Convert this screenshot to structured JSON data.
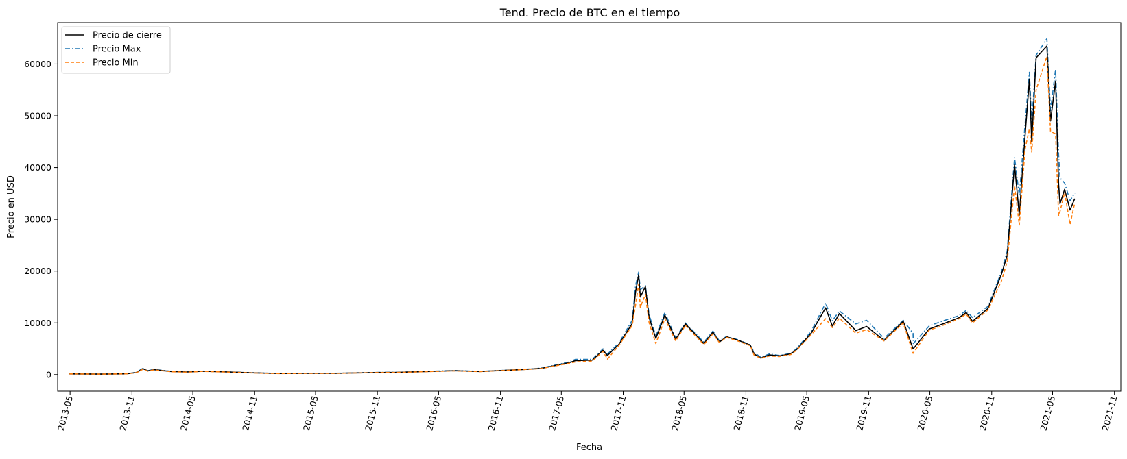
{
  "chart_data": {
    "type": "line",
    "title": "Tend. Precio de BTC en el tiempo",
    "xlabel": "Fecha",
    "ylabel": "Precio en USD",
    "xlim": [
      "2013-03-25",
      "2021-11-20"
    ],
    "ylim": [
      -3200,
      68000
    ],
    "x_ticks": [
      "2013-05",
      "2013-11",
      "2014-05",
      "2014-11",
      "2015-05",
      "2015-11",
      "2016-05",
      "2016-11",
      "2017-05",
      "2017-11",
      "2018-05",
      "2018-11",
      "2019-05",
      "2019-11",
      "2020-05",
      "2020-11",
      "2021-05",
      "2021-11"
    ],
    "y_ticks": [
      0,
      10000,
      20000,
      30000,
      40000,
      50000,
      60000
    ],
    "grid": false,
    "legend_position": "top-left",
    "x": [
      "2013-04-29",
      "2013-08-01",
      "2013-10-15",
      "2013-11-15",
      "2013-12-04",
      "2013-12-18",
      "2014-01-05",
      "2014-02-25",
      "2014-04-15",
      "2014-06-01",
      "2014-08-15",
      "2014-11-01",
      "2015-01-15",
      "2015-04-01",
      "2015-07-01",
      "2015-11-04",
      "2016-01-01",
      "2016-06-17",
      "2016-09-01",
      "2016-12-31",
      "2017-03-01",
      "2017-05-25",
      "2017-06-12",
      "2017-08-01",
      "2017-09-02",
      "2017-09-15",
      "2017-10-20",
      "2017-11-28",
      "2017-12-08",
      "2017-12-17",
      "2017-12-22",
      "2018-01-06",
      "2018-01-17",
      "2018-02-06",
      "2018-03-05",
      "2018-04-06",
      "2018-05-05",
      "2018-06-29",
      "2018-07-26",
      "2018-08-14",
      "2018-09-05",
      "2018-10-10",
      "2018-11-14",
      "2018-11-25",
      "2018-12-15",
      "2019-01-10",
      "2019-02-08",
      "2019-03-15",
      "2019-04-02",
      "2019-05-14",
      "2019-06-26",
      "2019-07-16",
      "2019-08-06",
      "2019-09-24",
      "2019-10-26",
      "2019-12-17",
      "2020-02-12",
      "2020-03-12",
      "2020-03-13",
      "2020-04-29",
      "2020-06-01",
      "2020-07-27",
      "2020-08-17",
      "2020-09-05",
      "2020-10-21",
      "2020-11-30",
      "2020-12-17",
      "2021-01-08",
      "2021-01-22",
      "2021-02-08",
      "2021-02-21",
      "2021-02-28",
      "2021-03-13",
      "2021-04-14",
      "2021-04-25",
      "2021-05-10",
      "2021-05-19",
      "2021-05-23",
      "2021-06-06",
      "2021-06-22",
      "2021-07-06"
    ],
    "series": [
      {
        "name": "Precio de cierre",
        "color": "#000000",
        "values": [
          140,
          100,
          150,
          400,
          1150,
          700,
          950,
          600,
          500,
          650,
          500,
          330,
          210,
          250,
          260,
          400,
          430,
          750,
          600,
          960,
          1200,
          2300,
          2700,
          2800,
          4700,
          3700,
          5900,
          9900,
          16000,
          19300,
          15000,
          17000,
          11000,
          7000,
          11500,
          6800,
          9800,
          6000,
          8200,
          6300,
          7300,
          6600,
          5700,
          4000,
          3200,
          3800,
          3600,
          4000,
          4900,
          8000,
          12900,
          9400,
          11800,
          8500,
          9300,
          6600,
          10300,
          5000,
          5000,
          8800,
          9600,
          11000,
          12000,
          10300,
          12800,
          19400,
          23000,
          40500,
          30800,
          46000,
          57000,
          45000,
          61200,
          63500,
          49000,
          56700,
          36800,
          33000,
          35800,
          31800,
          34000
        ]
      },
      {
        "name": "Precio Max",
        "color": "#1f77b4",
        "values": [
          145,
          105,
          155,
          450,
          1240,
          760,
          1000,
          650,
          540,
          680,
          520,
          350,
          220,
          260,
          270,
          430,
          450,
          780,
          620,
          980,
          1250,
          2450,
          2950,
          2950,
          4980,
          3950,
          6150,
          10500,
          17200,
          19800,
          16400,
          17200,
          11600,
          7400,
          12000,
          7100,
          10000,
          6250,
          8400,
          6500,
          7400,
          6700,
          5750,
          4300,
          3350,
          4000,
          3700,
          4100,
          5100,
          8350,
          13800,
          10400,
          12300,
          9800,
          10500,
          7000,
          10500,
          7950,
          6000,
          9400,
          10200,
          11400,
          12400,
          11000,
          13200,
          19900,
          23800,
          41900,
          34500,
          48200,
          58400,
          48500,
          61700,
          64900,
          51000,
          59000,
          42500,
          38000,
          37000,
          33600,
          35100
        ]
      },
      {
        "name": "Precio Min",
        "color": "#ff7f0e",
        "values": [
          135,
          95,
          145,
          380,
          1050,
          650,
          900,
          560,
          460,
          620,
          480,
          310,
          200,
          240,
          250,
          380,
          410,
          720,
          580,
          940,
          1150,
          2200,
          2450,
          2600,
          4500,
          3000,
          5700,
          9500,
          13500,
          17500,
          13000,
          15500,
          10000,
          6000,
          10800,
          6500,
          9500,
          5800,
          7900,
          6200,
          7200,
          6450,
          5600,
          3800,
          3150,
          3600,
          3500,
          3900,
          4800,
          7700,
          10800,
          9100,
          10900,
          8000,
          8700,
          6500,
          10000,
          4100,
          4200,
          8600,
          9300,
          10800,
          11700,
          10000,
          12500,
          18100,
          21800,
          36500,
          28900,
          43500,
          47500,
          43000,
          55000,
          61500,
          47000,
          46500,
          30700,
          31500,
          35200,
          29000,
          33200
        ]
      }
    ]
  }
}
